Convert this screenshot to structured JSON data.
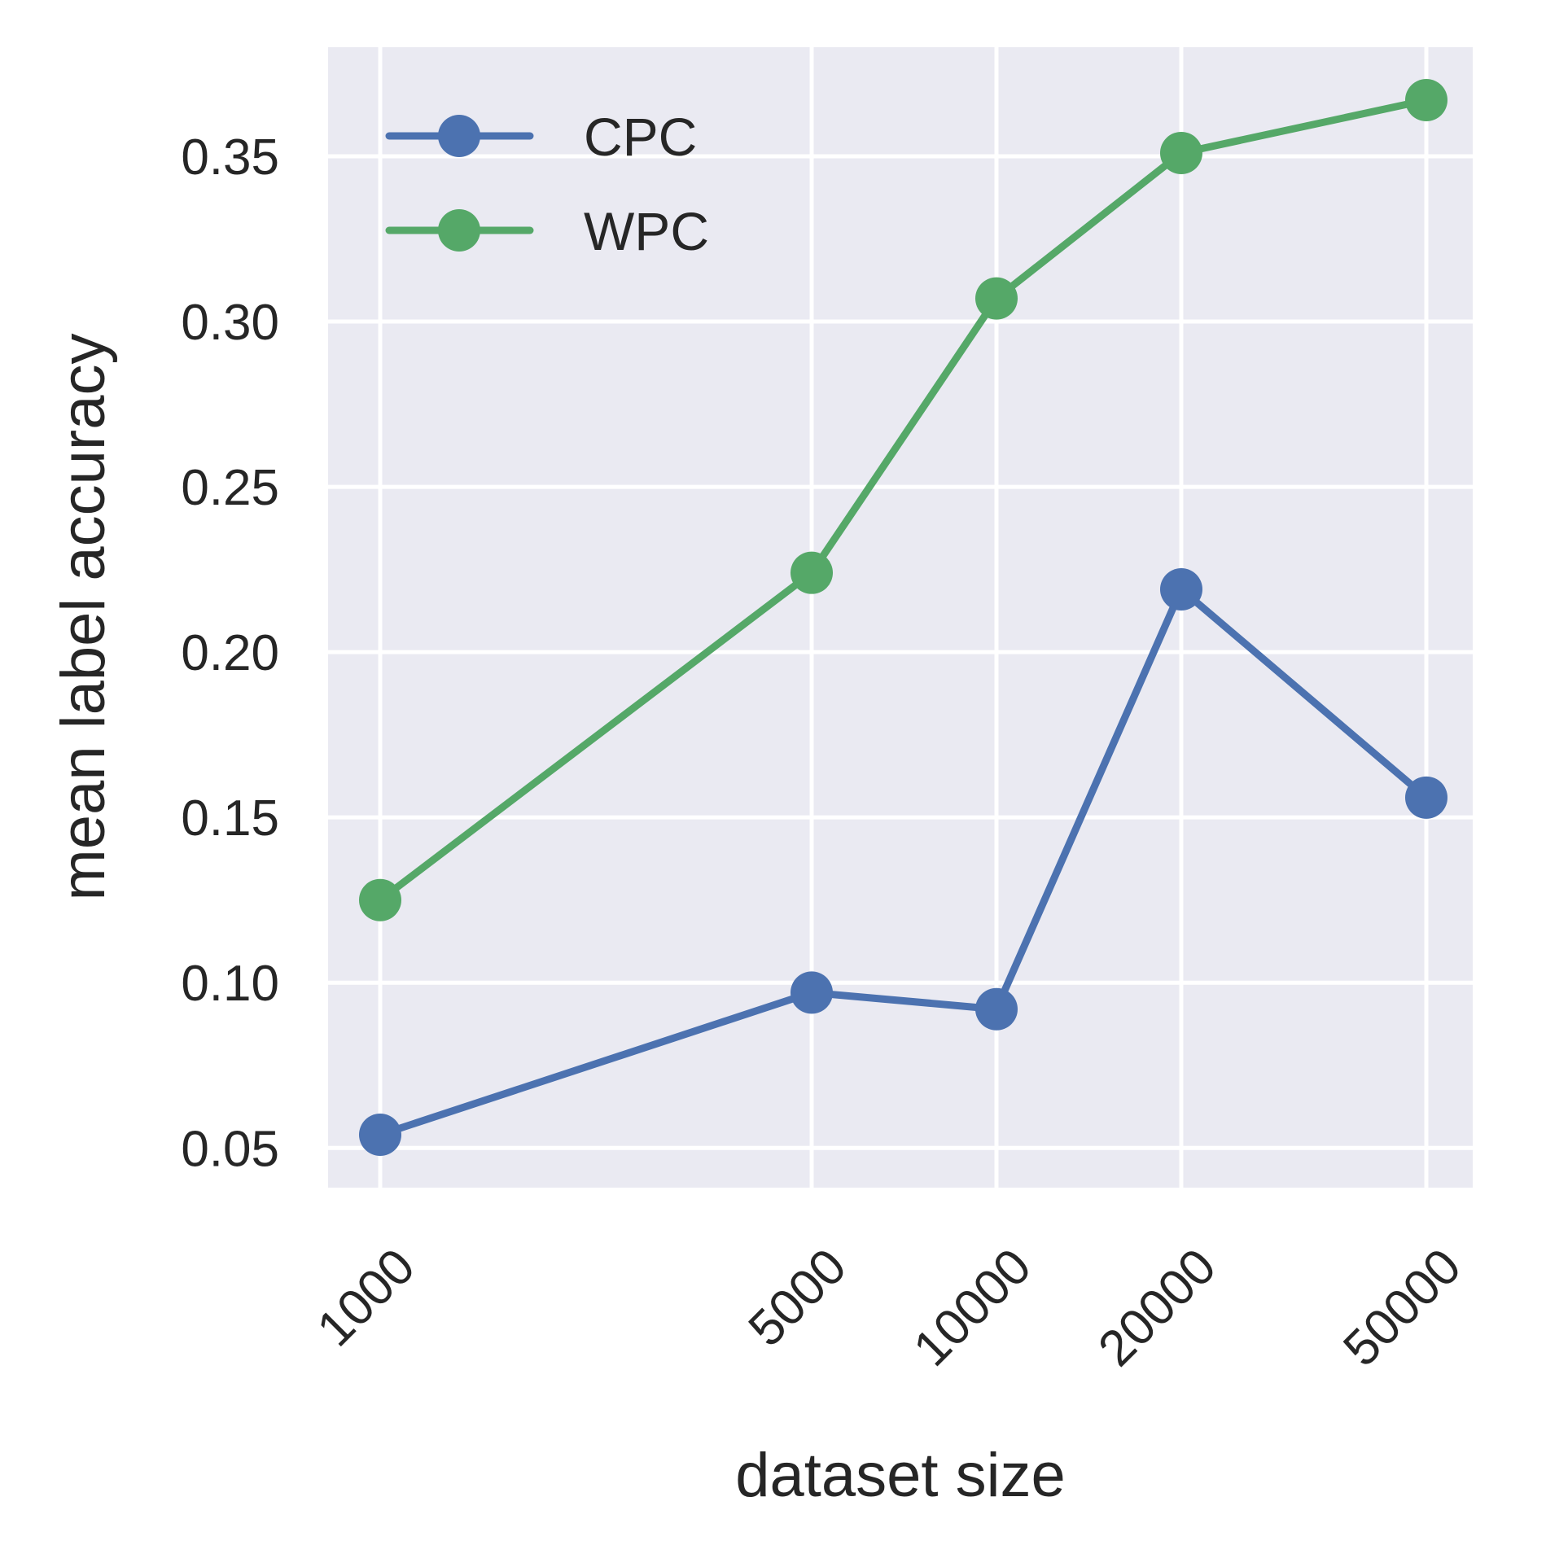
{
  "chart_data": {
    "type": "line",
    "title": "",
    "xlabel": "dataset size",
    "ylabel": "mean label accuracy",
    "x_scale": "log",
    "x": [
      1000,
      5000,
      10000,
      20000,
      50000
    ],
    "x_tick_labels": [
      "1000",
      "5000",
      "10000",
      "20000",
      "50000"
    ],
    "ylim": [
      0.038,
      0.383
    ],
    "y_ticks": [
      0.05,
      0.1,
      0.15,
      0.2,
      0.25,
      0.3,
      0.35
    ],
    "y_tick_labels": [
      "0.05",
      "0.10",
      "0.15",
      "0.20",
      "0.25",
      "0.30",
      "0.35"
    ],
    "grid": true,
    "legend_position": "top-left",
    "series": [
      {
        "name": "CPC",
        "color": "#4c72b0",
        "values": [
          0.054,
          0.097,
          0.092,
          0.219,
          0.156
        ]
      },
      {
        "name": "WPC",
        "color": "#55a868",
        "values": [
          0.125,
          0.224,
          0.307,
          0.351,
          0.367
        ]
      }
    ]
  }
}
